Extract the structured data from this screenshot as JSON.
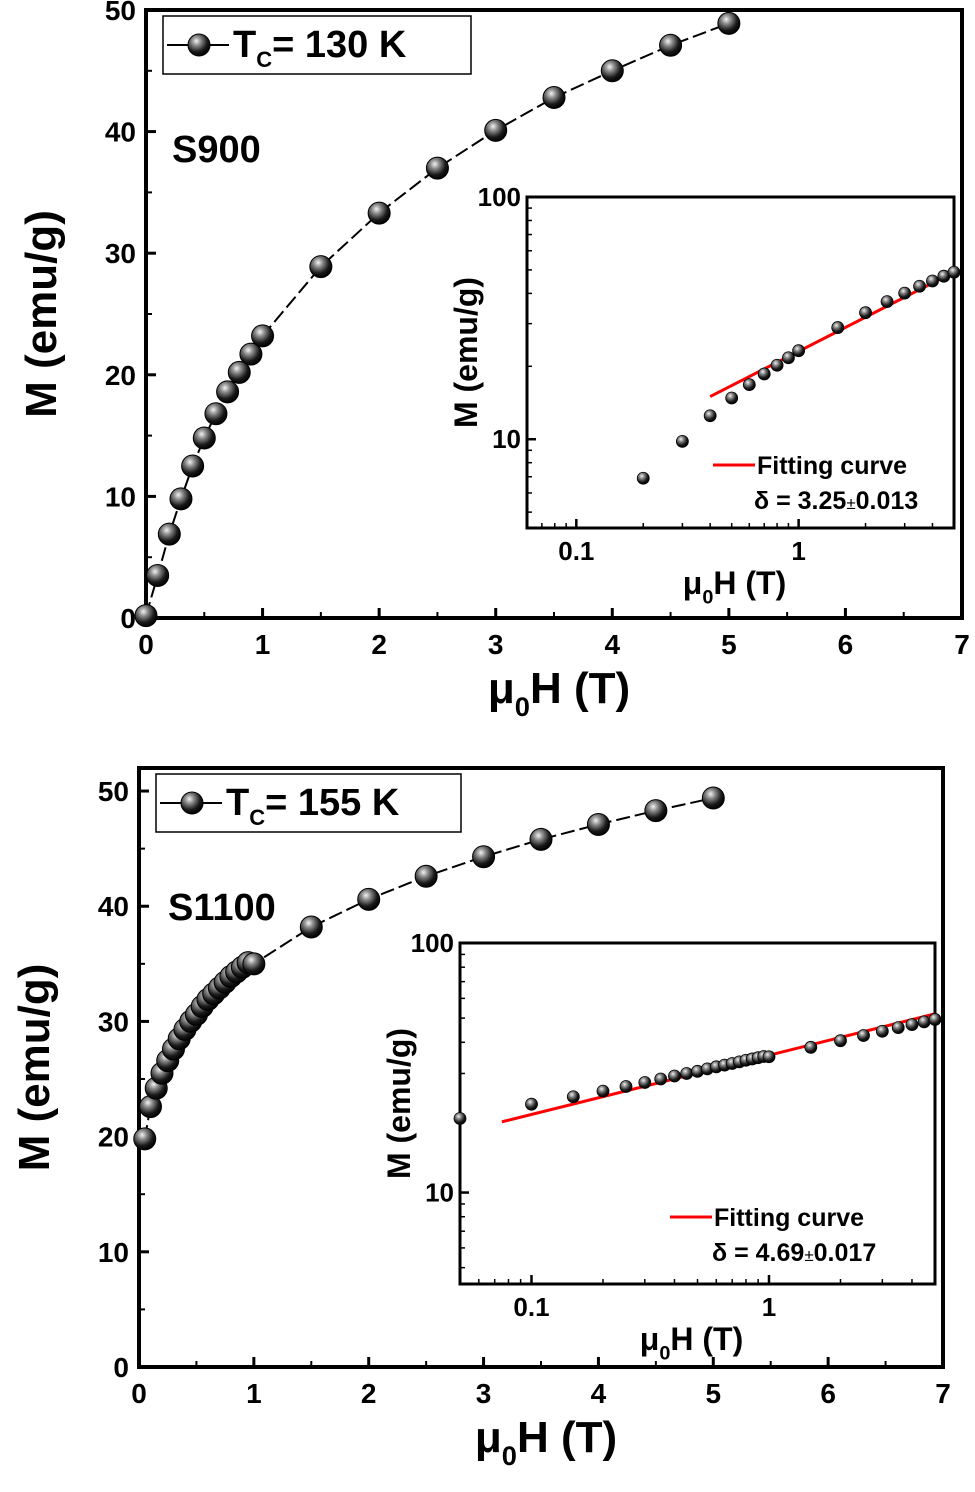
{
  "colors": {
    "axis": "#000000",
    "marker": "#1a1a1a",
    "fit_line": "#ff0000",
    "background": "#ffffff"
  },
  "chart_data": [
    {
      "id": "top-main",
      "type": "line",
      "xlabel_main": "μ",
      "xlabel_sub": "0",
      "xlabel_rest": "H (T)",
      "ylabel": "M (emu/g)",
      "xlim": [
        0,
        7
      ],
      "ylim": [
        0,
        50
      ],
      "xticks": [
        "0",
        "1",
        "2",
        "3",
        "4",
        "5",
        "6",
        "7"
      ],
      "yticks": [
        "0",
        "10",
        "20",
        "30",
        "40",
        "50"
      ],
      "sample_label": "S900",
      "legend": {
        "prefix": "T",
        "sub": "C",
        "text": "= 130 K",
        "placement": "top-left"
      },
      "series": [
        {
          "x": [
            0.0,
            0.1,
            0.2,
            0.3,
            0.4,
            0.5,
            0.6,
            0.7,
            0.8,
            0.9,
            1.0,
            1.5,
            2.0,
            2.5,
            3.0,
            3.5,
            4.0,
            4.5,
            5.0
          ],
          "y": [
            0.2,
            3.5,
            6.9,
            9.8,
            12.5,
            14.8,
            16.8,
            18.6,
            20.2,
            21.7,
            23.2,
            28.9,
            33.3,
            37.0,
            40.1,
            42.8,
            45.0,
            47.1,
            48.9
          ]
        }
      ]
    },
    {
      "id": "top-inset",
      "type": "scatter",
      "scale": "log-log",
      "xlabel_main": "μ",
      "xlabel_sub": "0",
      "xlabel_rest": "H (T)",
      "ylabel": "M (emu/g)",
      "xlim": [
        0.06,
        5
      ],
      "ylim": [
        4.3,
        100
      ],
      "xticks": [
        "0.1",
        "1"
      ],
      "yticks": [
        "10",
        "100"
      ],
      "legend": {
        "fit_label": "Fitting curve",
        "delta_text": "δ = 3.25",
        "delta_pm": "±",
        "delta_err": "0.013"
      },
      "fit_line": {
        "x": [
          0.4,
          5.0
        ],
        "y": [
          15.0,
          49.0
        ]
      },
      "series": [
        {
          "x": [
            0.2,
            0.3,
            0.4,
            0.5,
            0.6,
            0.7,
            0.8,
            0.9,
            1.0,
            1.5,
            2.0,
            2.5,
            3.0,
            3.5,
            4.0,
            4.5,
            5.0
          ],
          "y": [
            6.9,
            9.8,
            12.5,
            14.8,
            16.8,
            18.6,
            20.2,
            21.7,
            23.2,
            28.9,
            33.3,
            37.0,
            40.1,
            42.8,
            45.0,
            47.1,
            48.9
          ]
        }
      ]
    },
    {
      "id": "bottom-main",
      "type": "line",
      "xlabel_main": "μ",
      "xlabel_sub": "0",
      "xlabel_rest": "H (T)",
      "ylabel": "M (emu/g)",
      "xlim": [
        0,
        7
      ],
      "ylim": [
        0,
        52
      ],
      "xticks": [
        "0",
        "1",
        "2",
        "3",
        "4",
        "5",
        "6",
        "7"
      ],
      "yticks": [
        "0",
        "10",
        "20",
        "30",
        "40",
        "50"
      ],
      "sample_label": "S1100",
      "legend": {
        "prefix": "T",
        "sub": "C",
        "text": "= 155 K",
        "placement": "top-left"
      },
      "series": [
        {
          "x": [
            0.05,
            0.1,
            0.15,
            0.2,
            0.25,
            0.3,
            0.35,
            0.4,
            0.45,
            0.5,
            0.55,
            0.6,
            0.65,
            0.7,
            0.75,
            0.8,
            0.85,
            0.9,
            0.95,
            1.0,
            1.5,
            2.0,
            2.5,
            3.0,
            3.5,
            4.0,
            4.5,
            5.0
          ],
          "y": [
            19.8,
            22.6,
            24.2,
            25.5,
            26.6,
            27.6,
            28.5,
            29.3,
            30.0,
            30.6,
            31.3,
            31.9,
            32.4,
            32.9,
            33.4,
            33.9,
            34.3,
            34.7,
            35.1,
            35.0,
            38.2,
            40.6,
            42.6,
            44.3,
            45.8,
            47.1,
            48.3,
            49.4
          ]
        }
      ]
    },
    {
      "id": "bottom-inset",
      "type": "scatter",
      "scale": "log-log",
      "xlabel_main": "μ",
      "xlabel_sub": "0",
      "xlabel_rest": "H (T)",
      "ylabel": "M (emu/g)",
      "xlim": [
        0.05,
        5
      ],
      "ylim": [
        4.3,
        100
      ],
      "xticks": [
        "0.1",
        "1"
      ],
      "yticks": [
        "10",
        "100"
      ],
      "legend": {
        "fit_label": "Fitting curve",
        "delta_text": "δ = 4.69",
        "delta_pm": "±",
        "delta_err": "0.017"
      },
      "fit_line": {
        "x": [
          0.075,
          5.0
        ],
        "y": [
          19.2,
          52.0
        ]
      },
      "series": [
        {
          "x": [
            0.05,
            0.1,
            0.15,
            0.2,
            0.25,
            0.3,
            0.35,
            0.4,
            0.45,
            0.5,
            0.55,
            0.6,
            0.65,
            0.7,
            0.75,
            0.8,
            0.85,
            0.9,
            0.95,
            1.0,
            1.5,
            2.0,
            2.5,
            3.0,
            3.5,
            4.0,
            4.5,
            5.0
          ],
          "y": [
            19.8,
            22.6,
            24.2,
            25.5,
            26.6,
            27.6,
            28.5,
            29.3,
            30.0,
            30.6,
            31.3,
            31.9,
            32.4,
            32.9,
            33.4,
            33.9,
            34.3,
            34.7,
            35.1,
            35.0,
            38.2,
            40.6,
            42.6,
            44.3,
            45.8,
            47.1,
            48.3,
            49.4
          ]
        }
      ]
    }
  ]
}
